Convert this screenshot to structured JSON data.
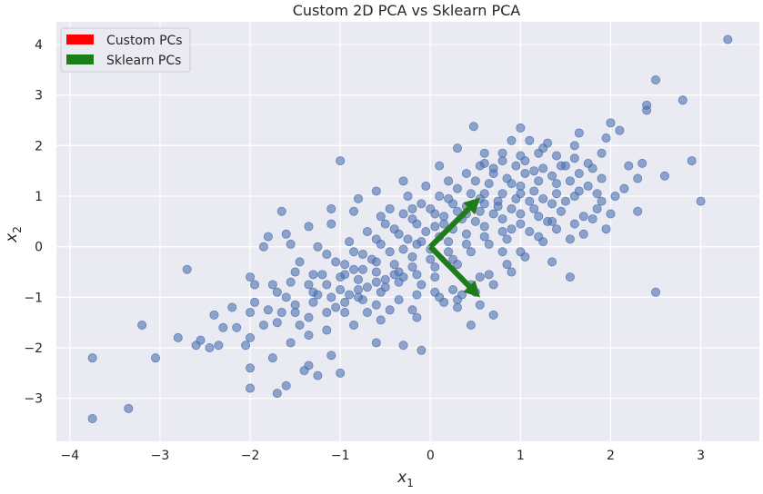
{
  "chart_data": {
    "type": "scatter",
    "title": "Custom 2D PCA vs Sklearn PCA",
    "xlabel": "x",
    "xlabel_sub": "1",
    "ylabel": "x",
    "ylabel_sub": "2",
    "xlim": [
      -4.15,
      3.65
    ],
    "ylim": [
      -3.85,
      4.45
    ],
    "xticks": [
      -4,
      -3,
      -2,
      -1,
      0,
      1,
      2,
      3
    ],
    "yticks": [
      -3,
      -2,
      -1,
      0,
      1,
      2,
      3,
      4
    ],
    "xtick_labels": [
      "−4",
      "−3",
      "−2",
      "−1",
      "0",
      "1",
      "2",
      "3"
    ],
    "ytick_labels": [
      "−3",
      "−2",
      "−1",
      "0",
      "1",
      "2",
      "3",
      "4"
    ],
    "grid": true,
    "legend_position": "top-left",
    "colors": {
      "background": "#eaeaf2",
      "points": "#4c72b0",
      "custom_pcs": "#ff0000",
      "sklearn_pcs": "#1a7f1a"
    },
    "legend": [
      {
        "label": "Custom PCs",
        "color": "#ff0000"
      },
      {
        "label": "Sklearn PCs",
        "color": "#1a7f1a"
      }
    ],
    "components": [
      {
        "x": 0.55,
        "y": 0.97
      },
      {
        "x": 0.55,
        "y": -1.0
      }
    ],
    "series": [
      {
        "name": "data",
        "points": [
          [
            3.3,
            4.1
          ],
          [
            2.5,
            3.3
          ],
          [
            2.8,
            2.9
          ],
          [
            2.4,
            2.8
          ],
          [
            2.4,
            2.7
          ],
          [
            2.9,
            1.7
          ],
          [
            3.0,
            0.9
          ],
          [
            2.6,
            1.4
          ],
          [
            2.5,
            -0.9
          ],
          [
            2.3,
            0.7
          ],
          [
            2.3,
            1.35
          ],
          [
            2.35,
            1.65
          ],
          [
            2.0,
            2.45
          ],
          [
            2.1,
            2.3
          ],
          [
            1.95,
            2.15
          ],
          [
            1.9,
            1.85
          ],
          [
            2.2,
            1.6
          ],
          [
            2.15,
            1.15
          ],
          [
            1.9,
            0.9
          ],
          [
            1.95,
            0.35
          ],
          [
            1.75,
            1.65
          ],
          [
            1.7,
            0.6
          ],
          [
            1.55,
            -0.6
          ],
          [
            1.35,
            -0.3
          ],
          [
            1.35,
            0.5
          ],
          [
            1.65,
            2.25
          ],
          [
            1.5,
            1.6
          ],
          [
            1.0,
            2.35
          ],
          [
            0.48,
            2.38
          ],
          [
            0.3,
            1.95
          ],
          [
            0.8,
            1.85
          ],
          [
            -1.0,
            1.7
          ],
          [
            -0.8,
            0.95
          ],
          [
            -1.65,
            0.7
          ],
          [
            -1.8,
            0.2
          ],
          [
            -1.55,
            0.05
          ],
          [
            -2.7,
            -0.45
          ],
          [
            -1.95,
            -0.75
          ],
          [
            -2.0,
            -1.3
          ],
          [
            -2.4,
            -1.35
          ],
          [
            -2.55,
            -1.85
          ],
          [
            -2.6,
            -1.95
          ],
          [
            -2.45,
            -2.0
          ],
          [
            -2.35,
            -1.95
          ],
          [
            -2.8,
            -1.8
          ],
          [
            -3.2,
            -1.55
          ],
          [
            -3.05,
            -2.2
          ],
          [
            -3.75,
            -2.2
          ],
          [
            -3.35,
            -3.2
          ],
          [
            -3.75,
            -3.4
          ],
          [
            -2.0,
            -2.8
          ],
          [
            -1.7,
            -2.9
          ],
          [
            -1.6,
            -2.75
          ],
          [
            -1.4,
            -2.45
          ],
          [
            -1.35,
            -2.35
          ],
          [
            -1.25,
            -2.55
          ],
          [
            -1.0,
            -2.5
          ],
          [
            -1.75,
            -2.2
          ],
          [
            -2.0,
            -1.8
          ],
          [
            -2.0,
            -2.4
          ],
          [
            -1.1,
            -2.15
          ],
          [
            -0.6,
            -1.9
          ],
          [
            -0.3,
            -1.95
          ],
          [
            -0.1,
            -2.05
          ],
          [
            -0.15,
            -1.4
          ],
          [
            0.45,
            -1.55
          ],
          [
            0.7,
            -1.35
          ],
          [
            0.55,
            -1.15
          ],
          [
            0.3,
            -1.2
          ],
          [
            -2.15,
            -1.6
          ],
          [
            -1.5,
            -0.5
          ],
          [
            -1.25,
            -0.0
          ],
          [
            -1.1,
            0.45
          ],
          [
            -0.55,
            0.6
          ],
          [
            0.05,
            0.4
          ],
          [
            0.55,
            1.6
          ],
          [
            0.7,
            1.55
          ],
          [
            1.25,
            1.95
          ],
          [
            1.1,
            2.1
          ],
          [
            1.05,
            1.7
          ],
          [
            0.9,
            1.25
          ],
          [
            0.6,
            1.05
          ],
          [
            0.4,
            0.8
          ],
          [
            0.9,
            0.35
          ],
          [
            0.3,
            -0.35
          ],
          [
            -0.5,
            -0.8
          ],
          [
            -1.05,
            -1.2
          ],
          [
            -1.45,
            -1.55
          ],
          [
            -1.55,
            -1.9
          ],
          [
            -0.95,
            -1.3
          ],
          [
            -0.35,
            -0.5
          ],
          [
            -0.15,
            0.05
          ],
          [
            0.15,
            0.6
          ],
          [
            0.75,
            0.9
          ],
          [
            1.0,
            1.05
          ],
          [
            1.4,
            1.25
          ],
          [
            1.6,
            1.0
          ],
          [
            1.45,
            0.7
          ],
          [
            1.1,
            0.3
          ],
          [
            0.8,
            -0.1
          ],
          [
            0.55,
            -0.6
          ],
          [
            0.35,
            -0.95
          ],
          [
            0.15,
            -1.1
          ],
          [
            -0.2,
            -1.25
          ],
          [
            -0.55,
            -1.45
          ],
          [
            -0.85,
            -1.55
          ],
          [
            -1.15,
            -1.65
          ],
          [
            -1.35,
            -1.75
          ],
          [
            -1.7,
            -1.5
          ],
          [
            -1.8,
            -1.25
          ],
          [
            -1.6,
            -1.0
          ],
          [
            -1.35,
            -0.75
          ],
          [
            -1.2,
            -0.55
          ],
          [
            -0.95,
            -0.35
          ],
          [
            -0.75,
            -0.15
          ],
          [
            -0.55,
            0.05
          ],
          [
            -0.35,
            0.25
          ],
          [
            -0.15,
            0.45
          ],
          [
            0.05,
            0.65
          ],
          [
            0.25,
            0.85
          ],
          [
            0.45,
            1.05
          ],
          [
            0.65,
            1.25
          ],
          [
            0.85,
            1.35
          ],
          [
            1.05,
            1.45
          ],
          [
            1.25,
            1.55
          ],
          [
            1.45,
            1.6
          ],
          [
            1.65,
            1.45
          ],
          [
            1.75,
            1.2
          ],
          [
            1.85,
            1.05
          ],
          [
            1.25,
            0.95
          ],
          [
            1.15,
            0.75
          ],
          [
            1.3,
            0.5
          ],
          [
            1.2,
            0.2
          ],
          [
            1.0,
            -0.1
          ],
          [
            0.85,
            -0.35
          ],
          [
            0.65,
            -0.55
          ],
          [
            0.45,
            -0.75
          ],
          [
            0.25,
            -0.85
          ],
          [
            0.05,
            -0.9
          ],
          [
            -0.15,
            -0.95
          ],
          [
            -0.35,
            -1.05
          ],
          [
            -0.6,
            -1.15
          ],
          [
            -0.8,
            -1.0
          ],
          [
            -1.0,
            -0.85
          ],
          [
            -1.25,
            -0.95
          ],
          [
            -1.5,
            -1.15
          ],
          [
            -1.7,
            -0.9
          ],
          [
            -1.45,
            -0.3
          ],
          [
            -1.15,
            -0.15
          ],
          [
            -0.9,
            0.1
          ],
          [
            -0.7,
            0.3
          ],
          [
            -0.5,
            0.45
          ],
          [
            -0.3,
            0.65
          ],
          [
            -0.1,
            0.85
          ],
          [
            0.1,
            1.0
          ],
          [
            0.3,
            1.15
          ],
          [
            0.5,
            1.3
          ],
          [
            0.7,
            1.45
          ],
          [
            0.95,
            1.6
          ],
          [
            1.15,
            1.5
          ],
          [
            1.35,
            1.4
          ],
          [
            1.55,
            1.3
          ],
          [
            1.65,
            1.1
          ],
          [
            1.5,
            0.9
          ],
          [
            1.35,
            0.85
          ],
          [
            1.0,
            0.65
          ],
          [
            0.8,
            0.55
          ],
          [
            0.6,
            0.4
          ],
          [
            0.4,
            0.25
          ],
          [
            0.2,
            0.1
          ],
          [
            0.0,
            -0.05
          ],
          [
            -0.2,
            -0.2
          ],
          [
            -0.4,
            -0.35
          ],
          [
            -0.6,
            -0.5
          ],
          [
            -0.8,
            -0.65
          ],
          [
            -1.0,
            -0.6
          ],
          [
            -0.85,
            -0.45
          ],
          [
            -0.65,
            -0.25
          ],
          [
            -0.45,
            -0.1
          ],
          [
            -0.25,
            0.15
          ],
          [
            -0.05,
            0.3
          ],
          [
            0.15,
            0.45
          ],
          [
            0.35,
            0.55
          ],
          [
            0.55,
            0.7
          ],
          [
            0.75,
            0.8
          ],
          [
            0.95,
            0.95
          ],
          [
            1.15,
            1.1
          ],
          [
            0.85,
            0.15
          ],
          [
            0.65,
            0.05
          ],
          [
            0.45,
            -0.1
          ],
          [
            0.25,
            -0.25
          ],
          [
            0.05,
            -0.4
          ],
          [
            -0.15,
            -0.55
          ],
          [
            -0.35,
            -0.7
          ],
          [
            -0.55,
            -0.9
          ],
          [
            -0.75,
            -1.05
          ],
          [
            -0.95,
            -1.1
          ],
          [
            -1.15,
            -1.3
          ],
          [
            -1.35,
            -1.4
          ],
          [
            -0.45,
            0.75
          ],
          [
            -0.25,
            1.0
          ],
          [
            -0.05,
            1.2
          ],
          [
            0.2,
            1.3
          ],
          [
            0.4,
            1.45
          ],
          [
            0.6,
            1.65
          ],
          [
            0.8,
            1.7
          ],
          [
            1.0,
            1.8
          ],
          [
            1.2,
            1.85
          ],
          [
            1.4,
            1.8
          ],
          [
            1.6,
            1.75
          ],
          [
            1.8,
            1.55
          ],
          [
            1.9,
            1.35
          ],
          [
            2.05,
            1.0
          ],
          [
            1.8,
            0.55
          ],
          [
            1.6,
            0.45
          ],
          [
            1.4,
            0.35
          ],
          [
            1.25,
            0.1
          ],
          [
            1.05,
            -0.2
          ],
          [
            0.9,
            -0.5
          ],
          [
            0.7,
            -0.75
          ],
          [
            0.5,
            -0.9
          ],
          [
            0.3,
            -1.05
          ],
          [
            0.1,
            -1.0
          ],
          [
            -0.1,
            -0.75
          ],
          [
            -0.3,
            -0.6
          ],
          [
            -0.5,
            -0.65
          ],
          [
            -0.7,
            -0.8
          ],
          [
            -0.9,
            -0.95
          ],
          [
            -1.1,
            -1.0
          ],
          [
            -1.3,
            -1.1
          ],
          [
            -1.5,
            -1.3
          ],
          [
            -1.65,
            -1.3
          ],
          [
            -1.85,
            -1.55
          ],
          [
            -1.95,
            -1.1
          ],
          [
            -1.75,
            -0.75
          ],
          [
            -1.55,
            -0.7
          ],
          [
            -1.3,
            -0.55
          ],
          [
            -1.05,
            -0.3
          ],
          [
            -0.85,
            -0.1
          ],
          [
            -0.6,
            0.15
          ],
          [
            -0.4,
            0.35
          ],
          [
            -0.2,
            0.55
          ],
          [
            0.0,
            0.75
          ],
          [
            0.2,
            0.95
          ],
          [
            0.4,
            0.65
          ],
          [
            0.6,
            0.85
          ],
          [
            0.8,
            1.05
          ],
          [
            1.0,
            1.2
          ],
          [
            1.2,
            1.3
          ],
          [
            1.4,
            1.05
          ],
          [
            1.2,
            0.6
          ],
          [
            1.0,
            0.45
          ],
          [
            0.8,
            0.3
          ],
          [
            0.6,
            0.2
          ],
          [
            0.4,
            0.05
          ],
          [
            0.2,
            -0.1
          ],
          [
            0.0,
            -0.25
          ],
          [
            -0.2,
            -0.4
          ],
          [
            -0.4,
            -0.55
          ],
          [
            -0.6,
            -0.7
          ],
          [
            -0.8,
            -0.85
          ],
          [
            0.1,
            0.2
          ],
          [
            0.25,
            0.35
          ],
          [
            -0.1,
            0.1
          ],
          [
            -0.3,
            -0.05
          ],
          [
            0.5,
            0.5
          ],
          [
            0.7,
            0.65
          ],
          [
            0.9,
            0.75
          ],
          [
            1.1,
            0.9
          ],
          [
            -0.6,
            -0.3
          ],
          [
            -0.75,
            -0.45
          ],
          [
            -0.95,
            -0.55
          ],
          [
            -1.15,
            -0.75
          ],
          [
            -1.3,
            -0.9
          ],
          [
            0.3,
            0.7
          ],
          [
            0.55,
            0.95
          ],
          [
            -0.2,
            0.75
          ],
          [
            0.05,
            -0.6
          ],
          [
            -0.45,
            -1.25
          ],
          [
            -0.7,
            -1.3
          ],
          [
            1.7,
            0.25
          ],
          [
            1.55,
            0.15
          ],
          [
            1.85,
            0.75
          ],
          [
            2.0,
            0.65
          ],
          [
            1.6,
            2.0
          ],
          [
            1.3,
            2.05
          ],
          [
            0.9,
            2.1
          ],
          [
            0.6,
            1.85
          ],
          [
            0.1,
            1.6
          ],
          [
            -0.3,
            1.3
          ],
          [
            -0.6,
            1.1
          ],
          [
            -0.85,
            0.7
          ],
          [
            -1.1,
            0.75
          ],
          [
            -1.35,
            0.4
          ],
          [
            -1.6,
            0.25
          ],
          [
            -1.85,
            -0.0
          ],
          [
            -2.0,
            -0.6
          ],
          [
            -2.2,
            -1.2
          ],
          [
            -2.3,
            -1.6
          ],
          [
            -2.05,
            -1.95
          ]
        ]
      }
    ]
  }
}
